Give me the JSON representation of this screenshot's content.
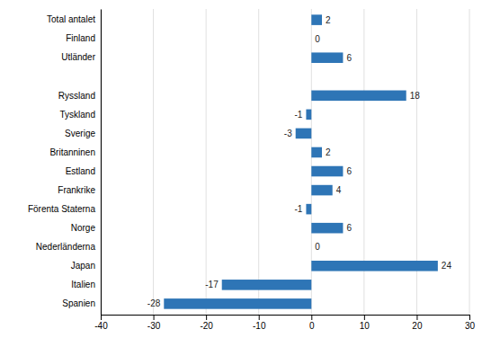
{
  "chart_data": {
    "type": "bar",
    "orientation": "horizontal",
    "categories": [
      "Total antalet",
      "Finland",
      "Utländer",
      null,
      "Ryssland",
      "Tyskland",
      "Sverige",
      "Britanninen",
      "Estland",
      "Frankrike",
      "Förenta Staterna",
      "Norge",
      "Nederländerna",
      "Japan",
      "Italien",
      "Spanien"
    ],
    "values": [
      2,
      0,
      6,
      null,
      18,
      -1,
      -3,
      2,
      6,
      4,
      -1,
      6,
      0,
      24,
      -17,
      -28
    ],
    "color": "#2e75b6",
    "xlim": [
      -40,
      30
    ],
    "xticks": [
      -40,
      -30,
      -20,
      -10,
      0,
      10,
      20,
      30
    ],
    "grid": true,
    "data_labels": true
  }
}
